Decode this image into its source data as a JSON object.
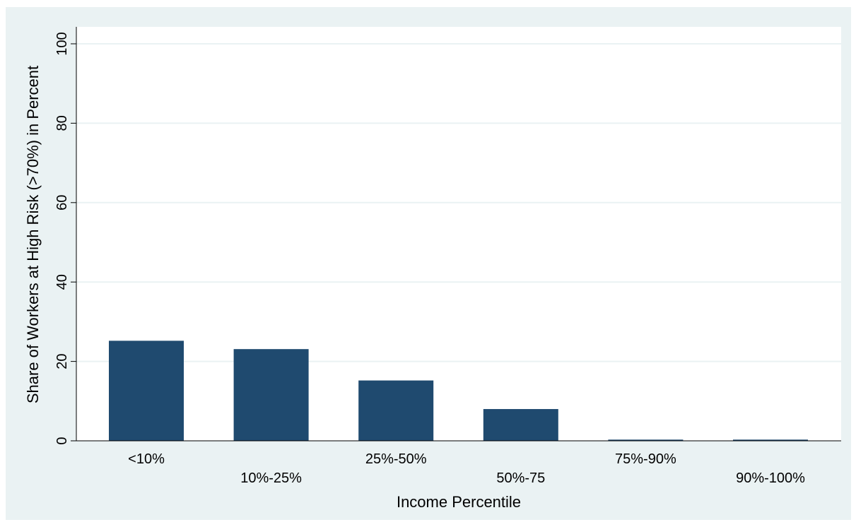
{
  "chart_data": {
    "type": "bar",
    "categories": [
      "<10%",
      "10%-25%",
      "25%-50%",
      "50%-75",
      "75%-90%",
      "90%-100%"
    ],
    "values": [
      25.2,
      23.1,
      15.2,
      8.0,
      0.3,
      0.3
    ],
    "xlabel": "Income Percentile",
    "ylabel": "Share of Workers at High Risk (>70%) in Percent",
    "ylim": [
      0,
      100
    ],
    "yticks": [
      0,
      20,
      40,
      60,
      80,
      100
    ],
    "grid": true,
    "legend": "none",
    "colors": {
      "bar": "#1f4a6f",
      "background": "#eaf2f3",
      "plot_area": "#ffffff",
      "grid": "#eaf2f3",
      "axis": "#000000"
    }
  }
}
